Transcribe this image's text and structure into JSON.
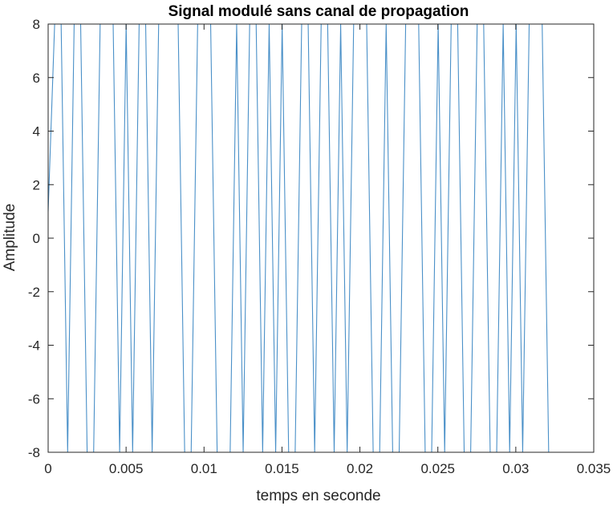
{
  "chart_data": {
    "type": "line",
    "title": "Signal modulé sans canal de propagation",
    "xlabel": "temps en seconde",
    "ylabel": "Amplitude",
    "xlim": [
      0,
      0.035
    ],
    "ylim": [
      -8,
      8
    ],
    "grid": false,
    "box": true,
    "series_color": "#4a90c8",
    "x_ticks": [
      "0",
      "0.005",
      "0.01",
      "0.015",
      "0.02",
      "0.025",
      "0.03",
      "0.035"
    ],
    "x_tick_values": [
      0,
      0.005,
      0.01,
      0.015,
      0.02,
      0.025,
      0.03,
      0.035
    ],
    "y_ticks": [
      "-8",
      "-6",
      "-4",
      "-2",
      "0",
      "2",
      "4",
      "6",
      "8"
    ],
    "y_tick_values": [
      -8,
      -6,
      -4,
      -2,
      0,
      2,
      4,
      6,
      8
    ],
    "series": [
      {
        "x_start": 0,
        "x_step": 0.000417,
        "values": [
          1,
          8,
          8,
          -8,
          8,
          8,
          -8,
          -8,
          8,
          8,
          8,
          -8,
          8,
          -8,
          8,
          8,
          -8,
          8,
          8,
          8,
          8,
          -8,
          -8,
          8,
          8,
          8,
          -8,
          -8,
          -8,
          8,
          -8,
          8,
          8,
          -8,
          8,
          -8,
          8,
          -8,
          -8,
          8,
          8,
          -8,
          8,
          8,
          -8,
          8,
          -8,
          8,
          8,
          8,
          -8,
          -8,
          8,
          -8,
          -8,
          8,
          8,
          8,
          -8,
          -8,
          8,
          -8,
          8,
          8,
          -8,
          -8,
          8,
          8,
          -8,
          -8,
          8,
          -8,
          8,
          -8,
          8,
          8,
          8,
          -8,
          -8,
          -8
        ]
      }
    ]
  }
}
